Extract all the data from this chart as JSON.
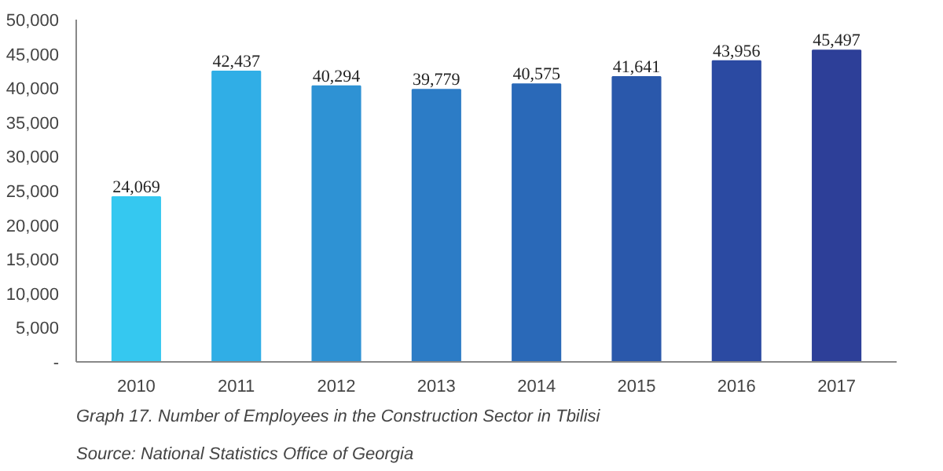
{
  "chart_data": {
    "type": "bar",
    "categories": [
      "2010",
      "2011",
      "2012",
      "2013",
      "2014",
      "2015",
      "2016",
      "2017"
    ],
    "values": [
      24069,
      42437,
      40294,
      39779,
      40575,
      41641,
      43956,
      45497
    ],
    "colors": [
      "#35c8f0",
      "#30aee6",
      "#2e92d4",
      "#2c7cc6",
      "#2a69b8",
      "#2a58ab",
      "#2b4aa2",
      "#2d3f98"
    ],
    "value_labels": [
      "24,069",
      "42,437",
      "40,294",
      "39,779",
      "40,575",
      "41,641",
      "43,956",
      "45,497"
    ],
    "ylim": [
      0,
      50000
    ],
    "yticks": [
      {
        "value": 0,
        "label": "-"
      },
      {
        "value": 5000,
        "label": "5,000"
      },
      {
        "value": 10000,
        "label": "10,000"
      },
      {
        "value": 15000,
        "label": "15,000"
      },
      {
        "value": 20000,
        "label": "20,000"
      },
      {
        "value": 25000,
        "label": "25,000"
      },
      {
        "value": 30000,
        "label": "30,000"
      },
      {
        "value": 35000,
        "label": "35,000"
      },
      {
        "value": 40000,
        "label": "40,000"
      },
      {
        "value": 45000,
        "label": "45,000"
      },
      {
        "value": 50000,
        "label": "50,000"
      }
    ],
    "grid": false,
    "annotations": [
      "Graph 17. Number of Employees in the Construction Sector in Tbilisi",
      "Source: National Statistics Office of Georgia"
    ]
  }
}
